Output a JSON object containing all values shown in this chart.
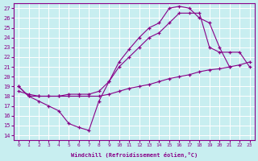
{
  "xlabel": "Windchill (Refroidissement éolien,°C)",
  "xlim": [
    -0.5,
    23.5
  ],
  "ylim": [
    13.5,
    27.5
  ],
  "yticks": [
    14,
    15,
    16,
    17,
    18,
    19,
    20,
    21,
    22,
    23,
    24,
    25,
    26,
    27
  ],
  "xticks": [
    0,
    1,
    2,
    3,
    4,
    5,
    6,
    7,
    8,
    9,
    10,
    11,
    12,
    13,
    14,
    15,
    16,
    17,
    18,
    19,
    20,
    21,
    22,
    23
  ],
  "bg_color": "#c8eef0",
  "grid_color": "#ffffff",
  "line_color": "#880088",
  "line1_x": [
    0,
    1,
    2,
    3,
    4,
    5,
    6,
    7,
    8,
    9,
    10,
    11,
    12,
    13,
    14,
    15,
    16,
    17,
    18,
    19,
    20,
    21
  ],
  "line1_y": [
    19.0,
    18.0,
    17.5,
    17.0,
    16.5,
    15.2,
    14.8,
    14.5,
    17.5,
    19.5,
    21.5,
    22.8,
    24.0,
    25.0,
    25.5,
    27.0,
    27.2,
    27.0,
    26.0,
    25.5,
    23.0,
    21.0
  ],
  "line2_x": [
    0,
    1,
    2,
    3,
    4,
    5,
    6,
    7,
    8,
    9,
    10,
    11,
    12,
    13,
    14,
    15,
    16,
    17,
    18,
    19,
    20,
    21,
    22,
    23
  ],
  "line2_y": [
    19.0,
    18.0,
    18.0,
    18.0,
    18.0,
    18.2,
    18.2,
    18.2,
    18.5,
    19.5,
    21.0,
    22.0,
    23.0,
    24.0,
    24.5,
    25.5,
    26.5,
    26.5,
    26.5,
    23.0,
    22.5,
    22.5,
    22.5,
    21.0
  ],
  "line3_x": [
    0,
    1,
    2,
    3,
    4,
    5,
    6,
    7,
    8,
    9,
    10,
    11,
    12,
    13,
    14,
    15,
    16,
    17,
    18,
    19,
    20,
    21,
    22,
    23
  ],
  "line3_y": [
    18.5,
    18.2,
    18.0,
    18.0,
    18.0,
    18.0,
    18.0,
    18.0,
    18.0,
    18.2,
    18.5,
    18.8,
    19.0,
    19.2,
    19.5,
    19.8,
    20.0,
    20.2,
    20.5,
    20.7,
    20.8,
    21.0,
    21.2,
    21.5
  ]
}
